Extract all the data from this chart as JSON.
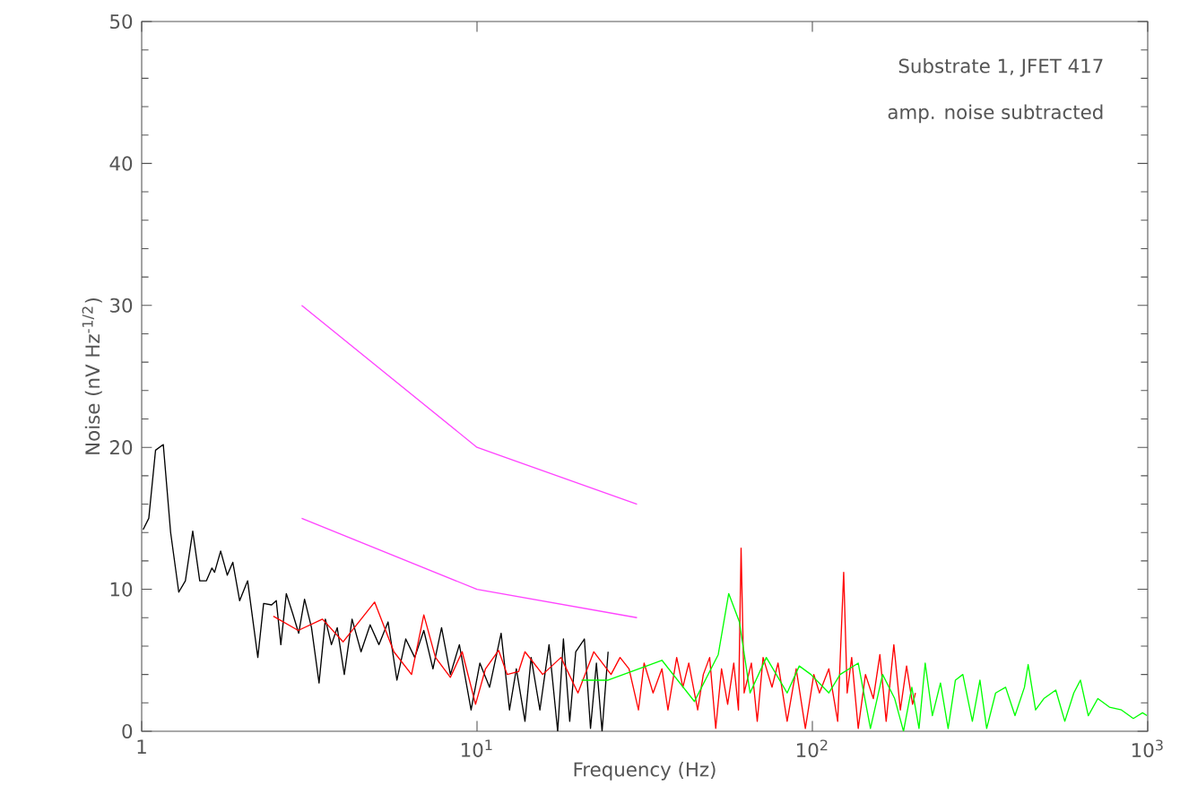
{
  "chart_data": {
    "type": "line",
    "log": "x",
    "xlabel": "Frequency (Hz)",
    "ylabel": "Noise (nV Hz$^{-1/2}$)",
    "annotations": [
      "Substrate 1, JFET 417",
      "amp. noise subtracted"
    ],
    "xlim": [
      1,
      1000
    ],
    "ylim": [
      0,
      50
    ],
    "xticks": [
      {
        "value": 1,
        "label": "1"
      },
      {
        "value": 10,
        "label": "10$^{1}$"
      },
      {
        "value": 100,
        "label": "10$^{2}$"
      },
      {
        "value": 1000,
        "label": "10$^{3}$"
      }
    ],
    "yticks": [
      0,
      10,
      20,
      30,
      40,
      50
    ],
    "marker": "none",
    "line_style": "solid",
    "series": [
      {
        "color": "#000000",
        "x": [
          1.01,
          1.05,
          1.1,
          1.16,
          1.22,
          1.29,
          1.35,
          1.42,
          1.49,
          1.56,
          1.62,
          1.65,
          1.72,
          1.8,
          1.87,
          1.96,
          2.07,
          2.22,
          2.31,
          2.44,
          2.52,
          2.6,
          2.7,
          2.82,
          2.94,
          3.06,
          3.21,
          3.38,
          3.53,
          3.68,
          3.83,
          4.02,
          4.24,
          4.51,
          4.8,
          5.1,
          5.43,
          5.77,
          6.13,
          6.52,
          6.94,
          7.39,
          7.84,
          8.33,
          8.86,
          9.6,
          10.2,
          10.9,
          11.8,
          12.5,
          13.1,
          13.9,
          14.5,
          15.4,
          16.4,
          17.4,
          18.1,
          18.9,
          19.7,
          20.9,
          21.8,
          22.7,
          23.6,
          24.6
        ],
        "values": [
          14.2,
          15.0,
          19.8,
          20.2,
          14.0,
          9.8,
          10.6,
          14.1,
          10.6,
          10.6,
          11.5,
          11.2,
          12.7,
          11.0,
          11.9,
          9.2,
          10.6,
          5.2,
          9.0,
          8.9,
          9.2,
          6.1,
          9.7,
          8.3,
          6.9,
          9.3,
          7.3,
          3.4,
          7.9,
          6.1,
          7.3,
          4.0,
          7.9,
          5.6,
          7.5,
          6.1,
          7.7,
          3.6,
          6.5,
          5.2,
          7.1,
          4.4,
          7.3,
          4.0,
          6.1,
          1.5,
          4.8,
          3.1,
          6.9,
          1.5,
          4.4,
          0.7,
          5.2,
          1.5,
          6.1,
          0,
          6.5,
          0.7,
          5.6,
          6.5,
          0.2,
          4.8,
          0,
          5.6
        ]
      },
      {
        "color": "#ff0000",
        "x": [
          2.47,
          2.93,
          3.46,
          3.99,
          4.95,
          5.65,
          6.38,
          6.94,
          7.52,
          8.33,
          9.03,
          9.9,
          10.6,
          11.6,
          12.3,
          13.3,
          13.9,
          15.7,
          17.8,
          20.0,
          22.3,
          25.1,
          26.7,
          28.4,
          30.3,
          31.5,
          33.5,
          35.6,
          37.1,
          39.4,
          41.1,
          42.8,
          45.5,
          47.3,
          49.4,
          51.5,
          53.6,
          55.9,
          58.3,
          60.2,
          61.3,
          62.6,
          65.8,
          68.5,
          71.3,
          75.8,
          79.0,
          84.1,
          89.5,
          95.3,
          101,
          105,
          112,
          119,
          124,
          127,
          131,
          137,
          144,
          152,
          159,
          166,
          175,
          183,
          191,
          199,
          203
        ],
        "values": [
          8.1,
          7.1,
          7.9,
          6.3,
          9.1,
          5.6,
          4.0,
          8.2,
          5.2,
          3.8,
          5.6,
          1.9,
          4.4,
          5.7,
          4.0,
          4.2,
          5.6,
          4.0,
          5.2,
          2.7,
          5.6,
          4.0,
          5.2,
          4.4,
          1.5,
          4.8,
          2.7,
          4.4,
          1.5,
          5.2,
          3.1,
          4.8,
          1.5,
          4.0,
          5.2,
          0.2,
          4.4,
          1.9,
          4.8,
          1.5,
          12.9,
          2.7,
          4.8,
          0.7,
          5.2,
          3.1,
          4.8,
          0.7,
          4.4,
          0.2,
          4.0,
          2.7,
          4.4,
          0.7,
          11.2,
          2.7,
          5.2,
          0.2,
          4.0,
          2.3,
          5.4,
          0.7,
          6.1,
          1.5,
          4.6,
          1.9,
          2.7
        ]
      },
      {
        "color": "#00ff00",
        "x": [
          20.5,
          24.6,
          35.6,
          44.5,
          52.4,
          56.3,
          60.6,
          65.2,
          72.9,
          84.1,
          91.4,
          99,
          112,
          121,
          137,
          149,
          162,
          176,
          187,
          198,
          208,
          217,
          228,
          241,
          254,
          267,
          281,
          300,
          316,
          331,
          352,
          377,
          402,
          429,
          440,
          463,
          490,
          532,
          566,
          602,
          630,
          665,
          710,
          769,
          835,
          906,
          965,
          995
        ],
        "values": [
          3.6,
          3.6,
          5.0,
          2.1,
          5.4,
          9.7,
          7.7,
          2.7,
          5.2,
          2.7,
          4.6,
          4.0,
          2.7,
          4.0,
          4.8,
          0.2,
          4.0,
          2.3,
          0,
          3.1,
          0.2,
          4.8,
          1.1,
          3.4,
          0.2,
          3.6,
          4.0,
          0.7,
          3.6,
          0.2,
          2.7,
          3.1,
          1.1,
          3.1,
          4.7,
          1.5,
          2.3,
          2.9,
          0.7,
          2.7,
          3.6,
          1.1,
          2.3,
          1.7,
          1.5,
          0.9,
          1.3,
          1.1
        ]
      },
      {
        "color": "#ff44ff",
        "x": [
          3,
          10,
          30
        ],
        "values": [
          30,
          20,
          16
        ]
      },
      {
        "color": "#ff44ff",
        "x": [
          3,
          10,
          30
        ],
        "values": [
          15,
          10,
          8
        ]
      }
    ]
  }
}
